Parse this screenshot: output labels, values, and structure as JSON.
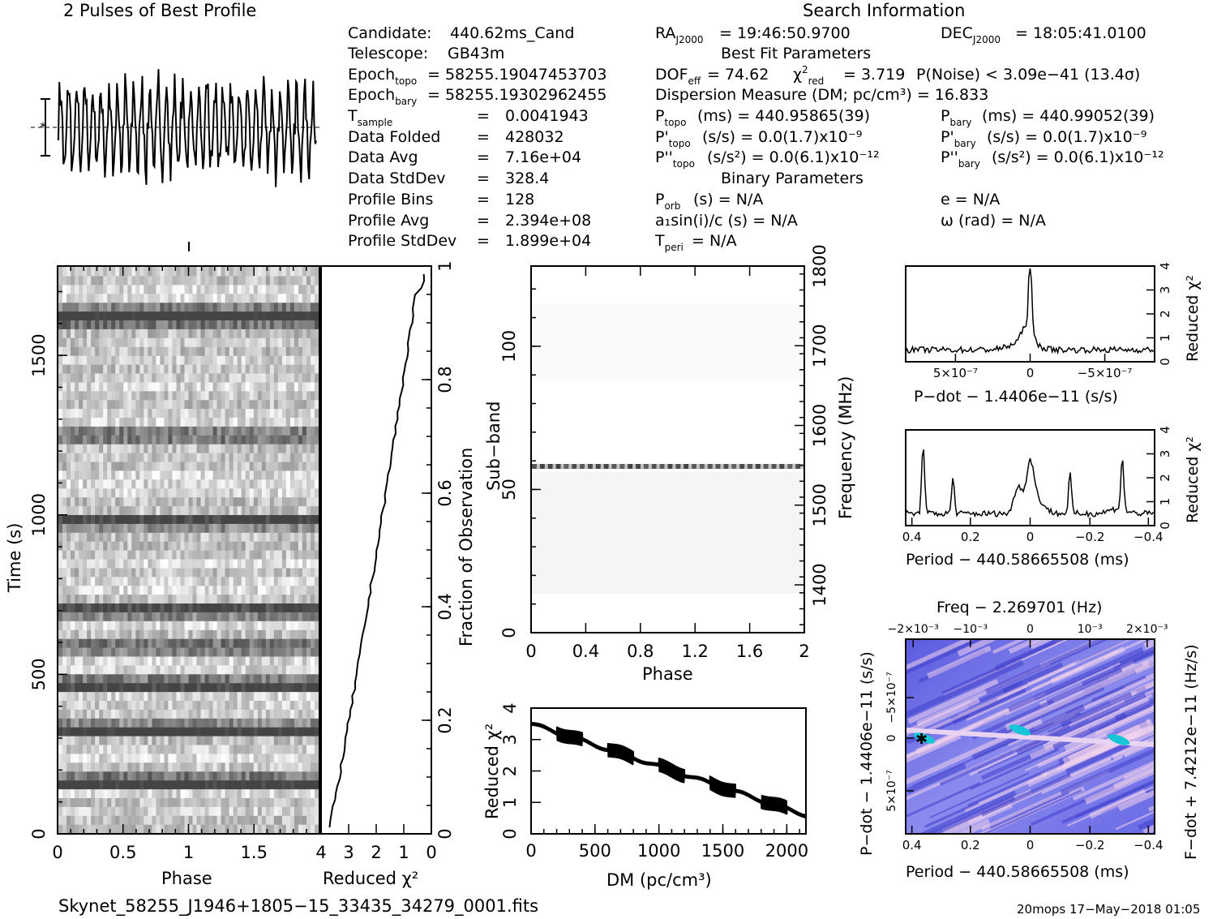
{
  "profile_title": "2 Pulses of Best Profile",
  "footer_left": "Skynet_58255_J1946+1805−15_33435_34279_0001.fits",
  "footer_right": "20mops 17−May−2018 01:05",
  "info_left": [
    {
      "label": "Candidate:",
      "value": "440.62ms_Cand"
    },
    {
      "label": "Telescope:",
      "value": "GB43m"
    },
    {
      "label": "Epoch",
      "sub": "topo",
      "value": "= 58255.19047453703"
    },
    {
      "label": "Epoch",
      "sub": "bary",
      "value": "= 58255.19302962455"
    },
    {
      "label": "T",
      "sub": "sample",
      "value": "0.0041943"
    },
    {
      "label": "Data Folded",
      "value": "428032"
    },
    {
      "label": "Data Avg",
      "value": "7.16e+04"
    },
    {
      "label": "Data StdDev",
      "value": "328.4"
    },
    {
      "label": "Profile Bins",
      "value": "128"
    },
    {
      "label": "Profile Avg",
      "value": "2.394e+08"
    },
    {
      "label": "Profile StdDev",
      "value": "1.899e+04"
    }
  ],
  "search_info": {
    "header": "Search Information",
    "ra": "= 19:46:50.9700",
    "dec": "= 18:05:41.0100",
    "best_fit_header": "Best Fit Parameters",
    "dof": "= 74.62",
    "chi2_red": "= 3.719",
    "p_noise": "P(Noise) < 3.09e−41   (13.4σ)",
    "dm_line": "Dispersion Measure (DM; pc/cm³) = 16.833",
    "p_topo": "(ms) =  440.95865(39)",
    "p_bary": "(ms) =  440.99052(39)",
    "pd_topo": "(s/s) = 0.0(1.7)x10⁻⁹",
    "pd_bary": "(s/s) = 0.0(1.7)x10⁻⁹",
    "pdd_topo": "(s/s²) = 0.0(6.1)x10⁻¹²",
    "pdd_bary": "(s/s²) = 0.0(6.1)x10⁻¹²",
    "binary_header": "Binary Parameters",
    "porb": "(s) = N/A",
    "e": "e = N/A",
    "asini": "a₁sin(i)/c (s) = N/A",
    "omega": "ω (rad) = N/A",
    "tperi": "= N/A"
  },
  "labels": {
    "phase": "Phase",
    "time": "Time (s)",
    "reduced_chi2": "Reduced χ²",
    "fraction": "Fraction of Observation",
    "subband": "Sub−band",
    "frequency": "Frequency (MHz)",
    "dm": "DM (pc/cm³)",
    "pdot": "P−dot − 1.4406e−11 (s/s)",
    "period": "Period − 440.58665508 (ms)",
    "freq_top": "Freq − 2.269701 (Hz)",
    "pdot_y": "P−dot − 1.4406e−11 (s/s)",
    "fdot_y": "F−dot + 7.4212e−11 (Hz/s)"
  },
  "chart_data": [
    {
      "type": "line",
      "name": "profile",
      "title": "2 Pulses of Best Profile",
      "x": [
        0,
        2
      ],
      "description_free": true
    },
    {
      "type": "heatmap",
      "name": "time-phase",
      "xlabel": "Phase",
      "ylabel": "Time (s)",
      "xlim": [
        0,
        2
      ],
      "ylim": [
        0,
        1780
      ],
      "xticks": [
        "0",
        "0.5",
        "1",
        "1.5"
      ],
      "yticks": [
        "0",
        "500",
        "1000",
        "1500"
      ]
    },
    {
      "type": "line",
      "name": "chi2-vs-time",
      "xlabel": "Reduced χ²",
      "xlim": [
        4,
        0
      ],
      "xticks": [
        "4",
        "3",
        "2",
        "1",
        "0"
      ],
      "y2ticks": [
        "0",
        "0.2",
        "0.4",
        "0.6",
        "0.8",
        "1"
      ]
    },
    {
      "type": "heatmap",
      "name": "subband-phase",
      "xlabel": "Phase",
      "ylabel": "Sub−band",
      "xlim": [
        0,
        2
      ],
      "ylim": [
        0,
        128
      ],
      "xticks": [
        "0",
        "0.4",
        "0.8",
        "1.2",
        "1.6",
        "2"
      ],
      "yticks": [
        "0",
        "50",
        "100"
      ],
      "y2ticks": [
        "1400",
        "1500",
        "1600",
        "1700",
        "1800"
      ],
      "y2label": "Frequency (MHz)"
    },
    {
      "type": "line",
      "name": "chi2-vs-dm",
      "xlabel": "DM (pc/cm³)",
      "ylabel": "Reduced χ²",
      "xlim": [
        0,
        2150
      ],
      "ylim": [
        0,
        4
      ],
      "xticks": [
        "0",
        "500",
        "1000",
        "1500",
        "2000"
      ],
      "yticks": [
        "0",
        "1",
        "2",
        "3",
        "4"
      ]
    },
    {
      "type": "line",
      "name": "chi2-vs-pdot",
      "xlabel": "P−dot − 1.4406e−11 (s/s)",
      "ylabel": "Reduced χ²",
      "xticks": [
        "5×10⁻⁷",
        "0",
        "−5×10⁻⁷"
      ],
      "yticks": [
        "0",
        "1",
        "2",
        "3",
        "4"
      ]
    },
    {
      "type": "line",
      "name": "chi2-vs-period",
      "xlabel": "Period − 440.58665508 (ms)",
      "ylabel": "Reduced χ²",
      "xlim": [
        0.42,
        -0.42
      ],
      "xticks": [
        "0.4",
        "0.2",
        "0",
        "−0.2",
        "−0.4"
      ],
      "yticks": [
        "0",
        "1",
        "2",
        "3",
        "4"
      ]
    },
    {
      "type": "heatmap",
      "name": "period-pdot",
      "xlabel": "Period − 440.58665508 (ms)",
      "xticks": [
        "0.4",
        "0.2",
        "0",
        "−0.2",
        "−0.4"
      ],
      "top_xticks": [
        "−2×10⁻³",
        "−10⁻³",
        "0",
        "10⁻³",
        "2×10⁻³"
      ],
      "yticks": [
        "−5×10⁻⁷",
        "0",
        "5×10⁻⁷"
      ]
    }
  ],
  "colors": {
    "ink": "#000000",
    "heat_blue": "#3a3ad6",
    "heat_pink": "#f3d8ee",
    "heat_cyan": "#16c6d6"
  }
}
